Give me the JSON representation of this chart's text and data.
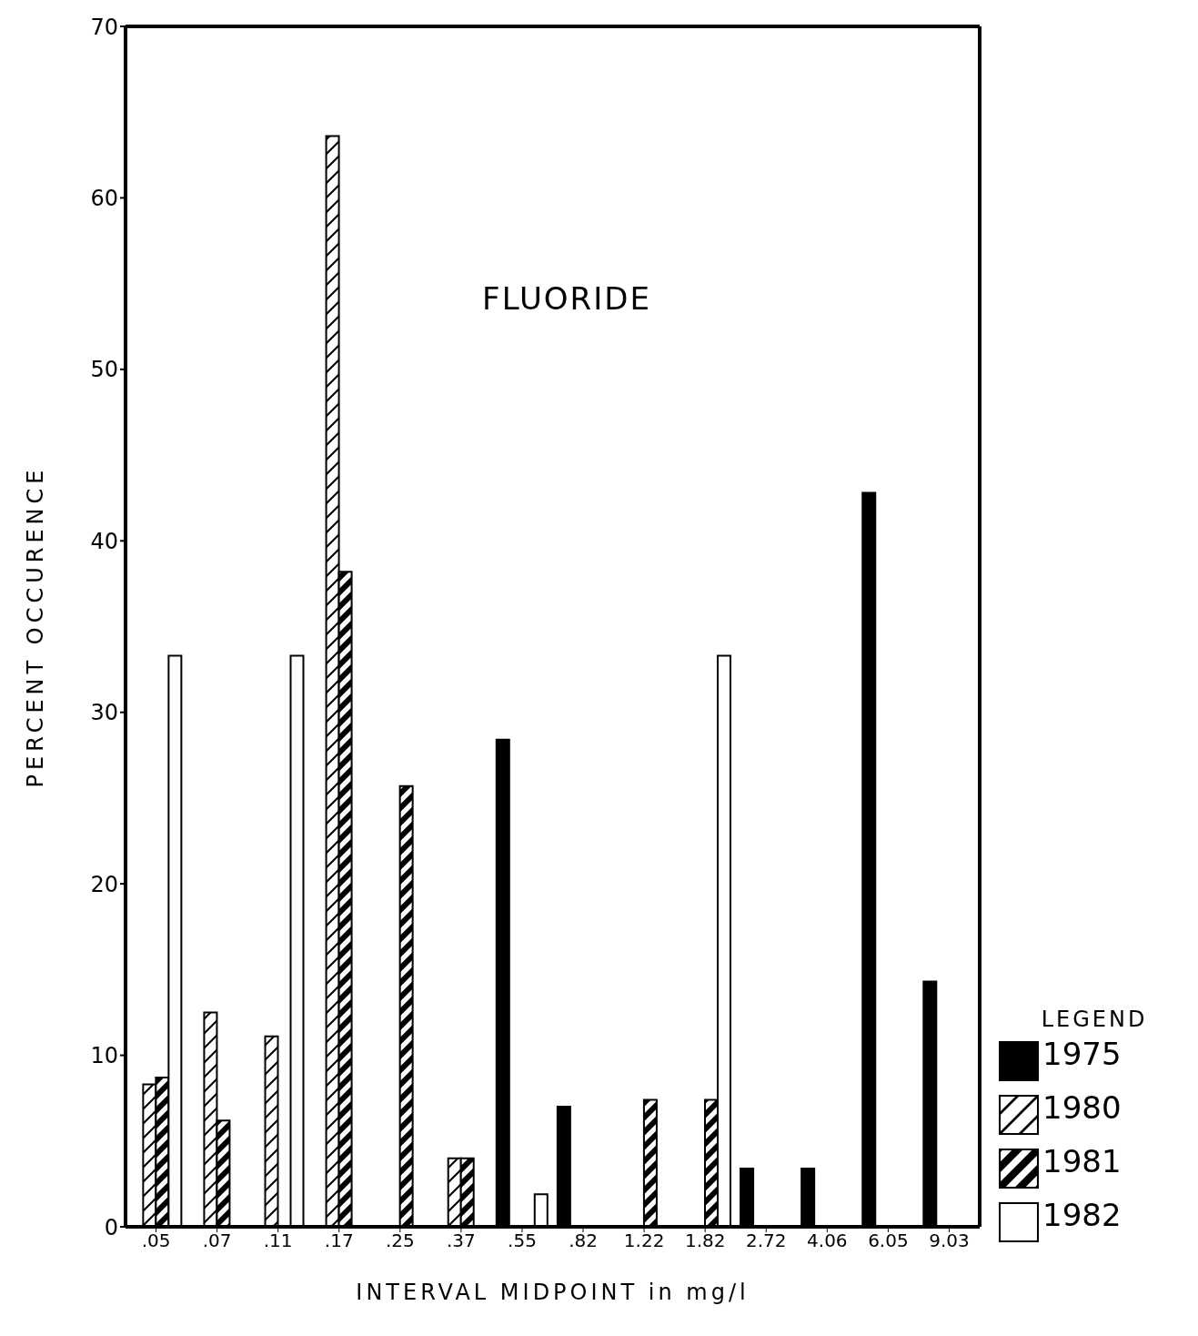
{
  "chart_data": {
    "type": "bar",
    "title": "FLUORIDE",
    "xlabel": "INTERVAL MIDPOINT in mg/l",
    "ylabel": "PERCENT OCCURENCE",
    "legend_title": "LEGEND",
    "categories": [
      ".05",
      ".07",
      ".11",
      ".17",
      ".25",
      ".37",
      ".55",
      ".82",
      "1.22",
      "1.82",
      "2.72",
      "4.06",
      "6.05",
      "9.03"
    ],
    "series": [
      {
        "name": "1975",
        "color": "#000000",
        "values": [
          null,
          null,
          null,
          null,
          null,
          null,
          28.4,
          7.0,
          null,
          null,
          3.4,
          3.4,
          42.8,
          14.3
        ]
      },
      {
        "name": "1980",
        "color": "#000000",
        "values": [
          8.3,
          12.5,
          11.1,
          63.6,
          null,
          4.0,
          null,
          null,
          null,
          null,
          null,
          null,
          null,
          null
        ]
      },
      {
        "name": "1981",
        "color": "#000000",
        "values": [
          8.7,
          6.2,
          null,
          38.2,
          25.7,
          4.0,
          null,
          null,
          7.4,
          7.4,
          null,
          null,
          null,
          null
        ]
      },
      {
        "name": "1982",
        "color": "#000000",
        "values": [
          33.3,
          null,
          33.3,
          null,
          null,
          null,
          1.9,
          null,
          null,
          33.3,
          null,
          null,
          null,
          null
        ]
      }
    ],
    "ylim": [
      0,
      70
    ],
    "yticks": [
      0,
      10,
      20,
      30,
      40,
      50,
      60,
      70
    ],
    "grid": false,
    "legend": "right"
  }
}
